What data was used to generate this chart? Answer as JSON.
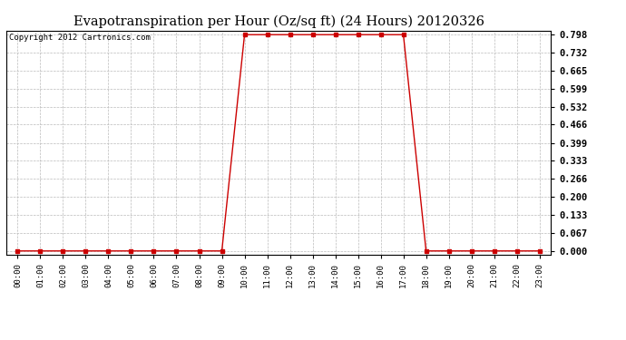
{
  "title": "Evapotranspiration per Hour (Oz/sq ft) (24 Hours) 20120326",
  "copyright_text": "Copyright 2012 Cartronics.com",
  "x_labels": [
    "00:00",
    "01:00",
    "02:00",
    "03:00",
    "04:00",
    "05:00",
    "06:00",
    "07:00",
    "08:00",
    "09:00",
    "10:00",
    "11:00",
    "12:00",
    "13:00",
    "14:00",
    "15:00",
    "16:00",
    "17:00",
    "18:00",
    "19:00",
    "20:00",
    "21:00",
    "22:00",
    "23:00"
  ],
  "y_values": [
    0.0,
    0.0,
    0.0,
    0.0,
    0.0,
    0.0,
    0.0,
    0.0,
    0.0,
    0.0,
    0.798,
    0.798,
    0.798,
    0.798,
    0.798,
    0.798,
    0.798,
    0.798,
    0.0,
    0.0,
    0.0,
    0.0,
    0.0,
    0.0
  ],
  "y_ticks": [
    0.0,
    0.067,
    0.133,
    0.2,
    0.266,
    0.333,
    0.399,
    0.466,
    0.532,
    0.599,
    0.665,
    0.732,
    0.798
  ],
  "y_max": 0.798,
  "line_color": "#cc0000",
  "marker": "s",
  "marker_size": 2.5,
  "background_color": "#ffffff",
  "plot_bg_color": "#ffffff",
  "grid_color": "#bbbbbb",
  "title_fontsize": 10.5,
  "copyright_fontsize": 6.5
}
